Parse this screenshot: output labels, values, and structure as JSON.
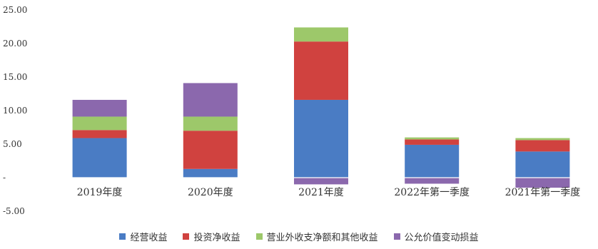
{
  "chart_data": {
    "type": "bar",
    "stacked": true,
    "categories": [
      "2019年度",
      "2020年度",
      "2021年度",
      "2022年第一季度",
      "2021年第一季度"
    ],
    "series": [
      {
        "name": "经营收益",
        "color": "#4a7cc4",
        "values": [
          5.9,
          1.3,
          11.6,
          4.9,
          3.9
        ]
      },
      {
        "name": "投资净收益",
        "color": "#d0423f",
        "values": [
          1.2,
          5.7,
          8.7,
          0.8,
          1.7
        ]
      },
      {
        "name": "营业外收支净额和其他收益",
        "color": "#9dc86a",
        "values": [
          2.0,
          2.1,
          2.1,
          0.3,
          0.3
        ]
      },
      {
        "name": "公允价值变动损益",
        "color": "#8b68ad",
        "values": [
          2.5,
          5.0,
          -1.0,
          -0.9,
          -1.5
        ]
      }
    ],
    "ylim": [
      -5,
      25
    ],
    "yticks": [
      -5,
      0,
      5,
      10,
      15,
      20,
      25
    ],
    "ytick_labels": [
      "-5.00",
      "-",
      "5.00",
      "10.00",
      "15.00",
      "20.00",
      "25.00"
    ],
    "legend_position": "bottom",
    "grid": false
  }
}
